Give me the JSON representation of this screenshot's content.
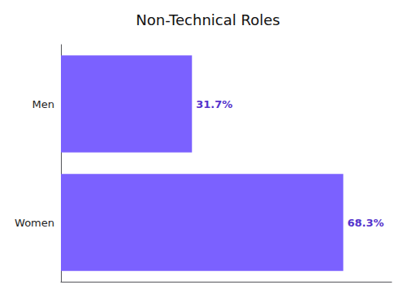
{
  "chart_data": {
    "type": "bar",
    "title": "Non-Technical Roles",
    "orientation": "horizontal",
    "categories": [
      "Women",
      "Men"
    ],
    "values": [
      68.3,
      31.7
    ],
    "value_labels": [
      "68.3%",
      "31.7%"
    ],
    "data_labels": true,
    "color": "#7B61FF",
    "xlim": [
      0,
      80
    ],
    "xticks": [],
    "tick_labels": "y",
    "grid": false
  }
}
